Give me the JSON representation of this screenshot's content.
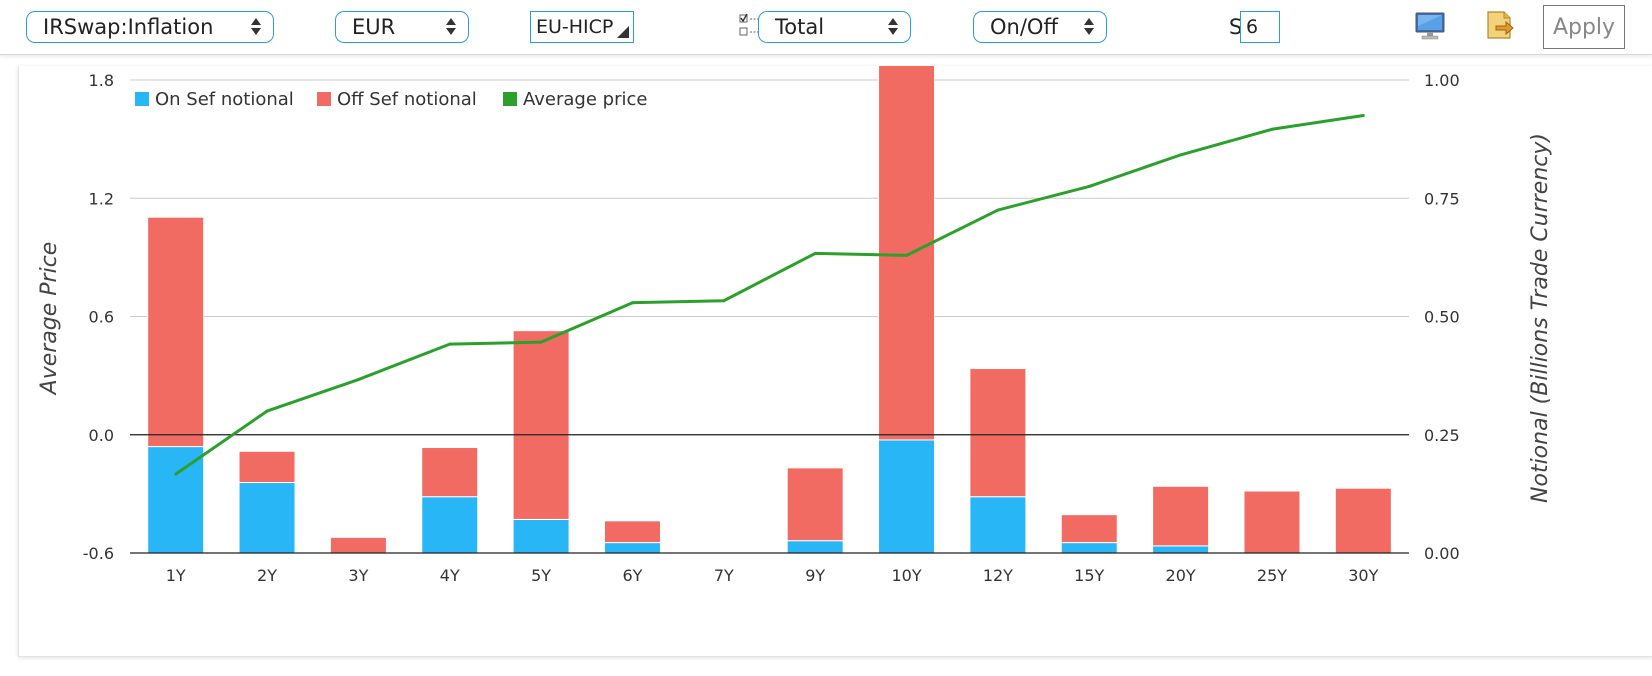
{
  "toolbar": {
    "product_select": "IRSwap:Inflation",
    "currency_select": "EUR",
    "index_field": "EU-HICP",
    "aggregate_select": "Total",
    "sef_select": "On/Off",
    "start_label": "Start",
    "start_value": "6",
    "apply_label": "Apply",
    "accent_color": "#2a9fd6"
  },
  "chart_data": {
    "type": "bar",
    "stacked": true,
    "categories": [
      "1Y",
      "2Y",
      "3Y",
      "4Y",
      "5Y",
      "6Y",
      "7Y",
      "9Y",
      "10Y",
      "12Y",
      "15Y",
      "20Y",
      "25Y",
      "30Y"
    ],
    "series": [
      {
        "name": "On Sef notional",
        "type": "bar",
        "axis": "right",
        "color": "#29b6f6",
        "values": [
          0.225,
          0.149,
          0.0,
          0.119,
          0.071,
          0.022,
          0.0,
          0.026,
          0.239,
          0.119,
          0.022,
          0.015,
          0.0,
          0.0
        ]
      },
      {
        "name": "Off Sef notional",
        "type": "bar",
        "axis": "right",
        "color": "#f26b62",
        "values": [
          0.485,
          0.066,
          0.033,
          0.104,
          0.399,
          0.046,
          0.002,
          0.154,
          0.884,
          0.271,
          0.059,
          0.126,
          0.131,
          0.137
        ]
      },
      {
        "name": "Average price",
        "type": "line",
        "axis": "left",
        "color": "#2ca02c",
        "values": [
          -0.2,
          0.12,
          0.28,
          0.46,
          0.47,
          0.67,
          0.68,
          0.92,
          0.91,
          1.14,
          1.26,
          1.42,
          1.55,
          1.62
        ]
      }
    ],
    "left_axis": {
      "label": "Average Price",
      "ylim": [
        -0.6,
        1.8
      ],
      "ticks": [
        "1.8",
        "1.2",
        "0.6",
        "0.0",
        "-0.6"
      ],
      "tick_values": [
        1.8,
        1.2,
        0.6,
        0.0,
        -0.6
      ]
    },
    "right_axis": {
      "label": "Notional (Billions Trade Currency)",
      "ylim": [
        0.0,
        1.0
      ],
      "ticks": [
        "1.00",
        "0.75",
        "0.50",
        "0.25",
        "0.00"
      ],
      "tick_values": [
        1.0,
        0.75,
        0.5,
        0.25,
        0.0
      ]
    },
    "zero_line": 0.0,
    "grid": true,
    "legend_position": "top-left"
  }
}
